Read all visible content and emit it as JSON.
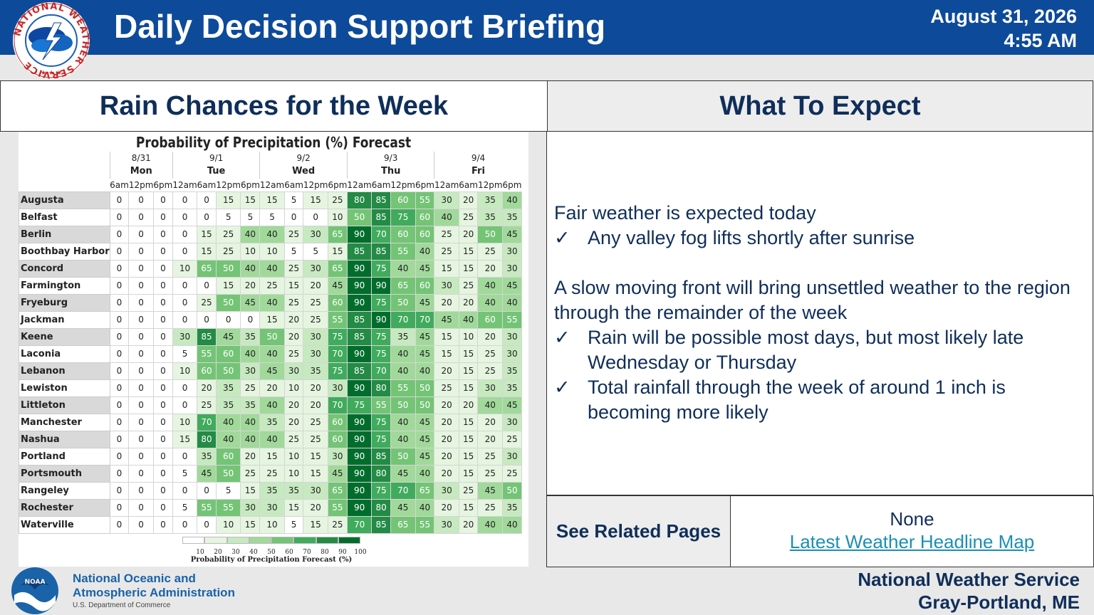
{
  "header": {
    "title": "Daily Decision Support Briefing",
    "date": "August 31, 2026",
    "time": "4:55 AM",
    "logo_text": "NATIONAL WEATHER SERVICE"
  },
  "left_panel": {
    "heading": "Rain Chances for the Week",
    "chart_data": {
      "type": "table",
      "title": "Probability of Precipitation (%) Forecast",
      "days": [
        {
          "date": "8/31",
          "name": "Mon",
          "periods": 3
        },
        {
          "date": "9/1",
          "name": "Tue",
          "periods": 4
        },
        {
          "date": "9/2",
          "name": "Wed",
          "periods": 4
        },
        {
          "date": "9/3",
          "name": "Thu",
          "periods": 4
        },
        {
          "date": "9/4",
          "name": "Fri",
          "periods": 4
        }
      ],
      "periods": [
        "6am",
        "12pm",
        "6pm",
        "12am",
        "6am",
        "12pm",
        "6pm",
        "12am",
        "6am",
        "12pm",
        "6pm",
        "12am",
        "6am",
        "12pm",
        "6pm",
        "12am",
        "6am",
        "12pm",
        "6pm"
      ],
      "rows": [
        {
          "city": "Augusta",
          "values": [
            0,
            0,
            0,
            0,
            0,
            15,
            15,
            15,
            5,
            15,
            25,
            80,
            85,
            60,
            55,
            30,
            20,
            35,
            40
          ]
        },
        {
          "city": "Belfast",
          "values": [
            0,
            0,
            0,
            0,
            0,
            5,
            5,
            5,
            0,
            0,
            10,
            50,
            85,
            75,
            60,
            40,
            25,
            35,
            35
          ]
        },
        {
          "city": "Berlin",
          "values": [
            0,
            0,
            0,
            0,
            15,
            25,
            40,
            40,
            25,
            30,
            65,
            90,
            70,
            60,
            60,
            25,
            20,
            50,
            45
          ]
        },
        {
          "city": "Boothbay Harbor",
          "values": [
            0,
            0,
            0,
            0,
            15,
            25,
            10,
            10,
            5,
            5,
            15,
            85,
            85,
            55,
            40,
            25,
            15,
            25,
            30
          ]
        },
        {
          "city": "Concord",
          "values": [
            0,
            0,
            0,
            10,
            65,
            50,
            40,
            40,
            25,
            30,
            65,
            90,
            75,
            40,
            45,
            15,
            15,
            20,
            30
          ]
        },
        {
          "city": "Farmington",
          "values": [
            0,
            0,
            0,
            0,
            0,
            15,
            20,
            25,
            15,
            20,
            45,
            90,
            90,
            65,
            60,
            30,
            25,
            40,
            45
          ]
        },
        {
          "city": "Fryeburg",
          "values": [
            0,
            0,
            0,
            0,
            25,
            50,
            45,
            40,
            25,
            25,
            60,
            90,
            75,
            50,
            45,
            20,
            20,
            40,
            40
          ]
        },
        {
          "city": "Jackman",
          "values": [
            0,
            0,
            0,
            0,
            0,
            0,
            0,
            15,
            20,
            25,
            55,
            85,
            90,
            70,
            70,
            45,
            40,
            60,
            55
          ]
        },
        {
          "city": "Keene",
          "values": [
            0,
            0,
            0,
            30,
            85,
            45,
            35,
            50,
            20,
            30,
            75,
            85,
            75,
            35,
            45,
            15,
            10,
            20,
            30
          ]
        },
        {
          "city": "Laconia",
          "values": [
            0,
            0,
            0,
            5,
            55,
            60,
            40,
            40,
            25,
            30,
            70,
            90,
            75,
            40,
            45,
            15,
            15,
            25,
            30
          ]
        },
        {
          "city": "Lebanon",
          "values": [
            0,
            0,
            0,
            10,
            60,
            50,
            30,
            45,
            30,
            35,
            75,
            85,
            70,
            40,
            40,
            20,
            15,
            25,
            35
          ]
        },
        {
          "city": "Lewiston",
          "values": [
            0,
            0,
            0,
            0,
            20,
            35,
            25,
            20,
            10,
            20,
            30,
            90,
            80,
            55,
            50,
            25,
            15,
            30,
            35
          ]
        },
        {
          "city": "Littleton",
          "values": [
            0,
            0,
            0,
            0,
            25,
            35,
            35,
            40,
            20,
            20,
            70,
            75,
            55,
            50,
            50,
            20,
            20,
            40,
            45
          ]
        },
        {
          "city": "Manchester",
          "values": [
            0,
            0,
            0,
            10,
            70,
            40,
            40,
            35,
            20,
            25,
            60,
            90,
            75,
            40,
            45,
            20,
            15,
            20,
            30
          ]
        },
        {
          "city": "Nashua",
          "values": [
            0,
            0,
            0,
            15,
            80,
            40,
            40,
            40,
            25,
            25,
            60,
            90,
            75,
            40,
            45,
            20,
            15,
            20,
            25
          ]
        },
        {
          "city": "Portland",
          "values": [
            0,
            0,
            0,
            0,
            35,
            60,
            20,
            15,
            10,
            15,
            30,
            90,
            85,
            50,
            45,
            20,
            15,
            25,
            30
          ]
        },
        {
          "city": "Portsmouth",
          "values": [
            0,
            0,
            0,
            5,
            45,
            50,
            25,
            25,
            10,
            15,
            45,
            90,
            80,
            45,
            40,
            20,
            15,
            25,
            25
          ]
        },
        {
          "city": "Rangeley",
          "values": [
            0,
            0,
            0,
            0,
            0,
            5,
            15,
            35,
            35,
            30,
            65,
            90,
            75,
            70,
            65,
            30,
            25,
            45,
            50
          ]
        },
        {
          "city": "Rochester",
          "values": [
            0,
            0,
            0,
            5,
            55,
            55,
            30,
            30,
            15,
            20,
            55,
            90,
            80,
            45,
            40,
            20,
            15,
            25,
            35
          ]
        },
        {
          "city": "Waterville",
          "values": [
            0,
            0,
            0,
            0,
            0,
            10,
            15,
            10,
            5,
            15,
            25,
            70,
            85,
            65,
            55,
            30,
            20,
            40,
            40
          ]
        }
      ],
      "legend": {
        "ticks": [
          "10",
          "20",
          "30",
          "40",
          "50",
          "60",
          "70",
          "80",
          "90",
          "100"
        ],
        "caption": "Probability of Precipitation Forecast (%)"
      },
      "colors": [
        "#ffffff",
        "#e5f5e0",
        "#c7e9c0",
        "#a1d99b",
        "#74c476",
        "#41ab5d",
        "#238b45",
        "#006d2c"
      ]
    }
  },
  "right_panel": {
    "heading": "What To Expect",
    "para1": "Fair weather is expected today",
    "bullet1": "Any valley fog lifts shortly after sunrise",
    "para2": "A slow moving front will bring unsettled weather to the region through the remainder of the week",
    "bullet2": "Rain will be possible most days, but most likely late Wednesday or Thursday",
    "bullet3": "Total rainfall through the week of around 1 inch is becoming more likely",
    "check_glyph": "✓"
  },
  "related": {
    "label": "See Related Pages",
    "none": "None",
    "link": "Latest Weather Headline Map"
  },
  "footer": {
    "noaa_line1": "National Oceanic and",
    "noaa_line2": "Atmospheric Administration",
    "noaa_sub": "U.S. Department of Commerce",
    "noaa_logo_text": "NOAA",
    "office_line1": "National Weather Service",
    "office_line2": "Gray-Portland, ME"
  }
}
